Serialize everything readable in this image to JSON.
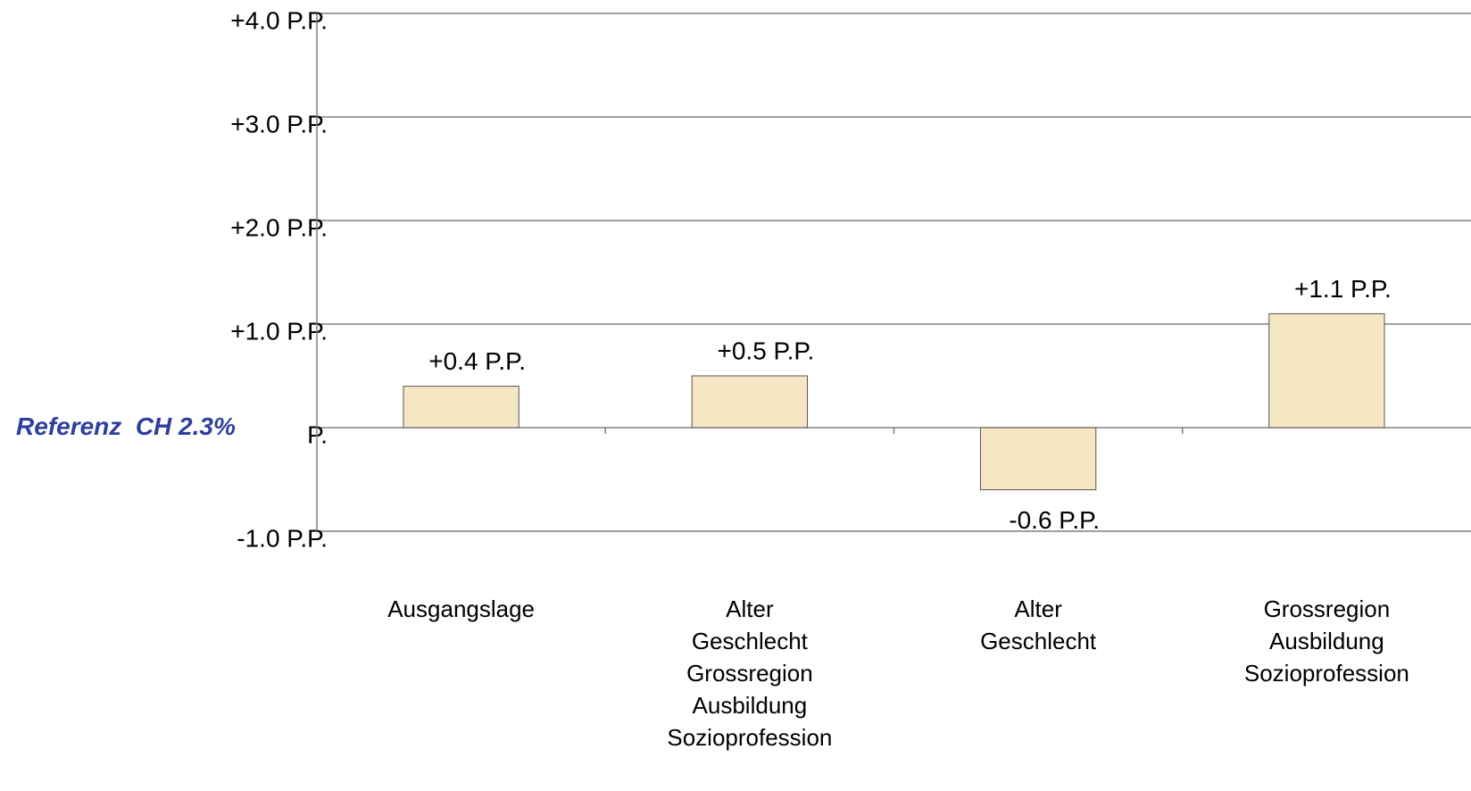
{
  "chart_data": {
    "type": "bar",
    "categories": [
      "Ausgangslage",
      "Alter\nGeschlecht\nGrossregion\nAusbildung\nSozioprofession",
      "Alter\nGeschlecht",
      "Grossregion\nAusbildung\nSozioprofession"
    ],
    "values": [
      0.4,
      0.5,
      -0.6,
      1.1
    ],
    "value_labels": [
      "+0.4 P.P.",
      "+0.5 P.P.",
      "-0.6 P.P.",
      "+1.1 P.P."
    ],
    "color": "#f5e7c3",
    "ylim": [
      -1,
      4
    ],
    "yticks": [
      {
        "value": -1,
        "label": "-1.0 P.P."
      },
      {
        "value": 0,
        "label": "P."
      },
      {
        "value": 1,
        "label": "+1.0 P.P."
      },
      {
        "value": 2,
        "label": "+2.0 P.P."
      },
      {
        "value": 3,
        "label": "+3.0 P.P."
      },
      {
        "value": 4,
        "label": "+4.0 P.P."
      }
    ],
    "grid": true,
    "annotation": "Referenz  CH 2.3%"
  }
}
